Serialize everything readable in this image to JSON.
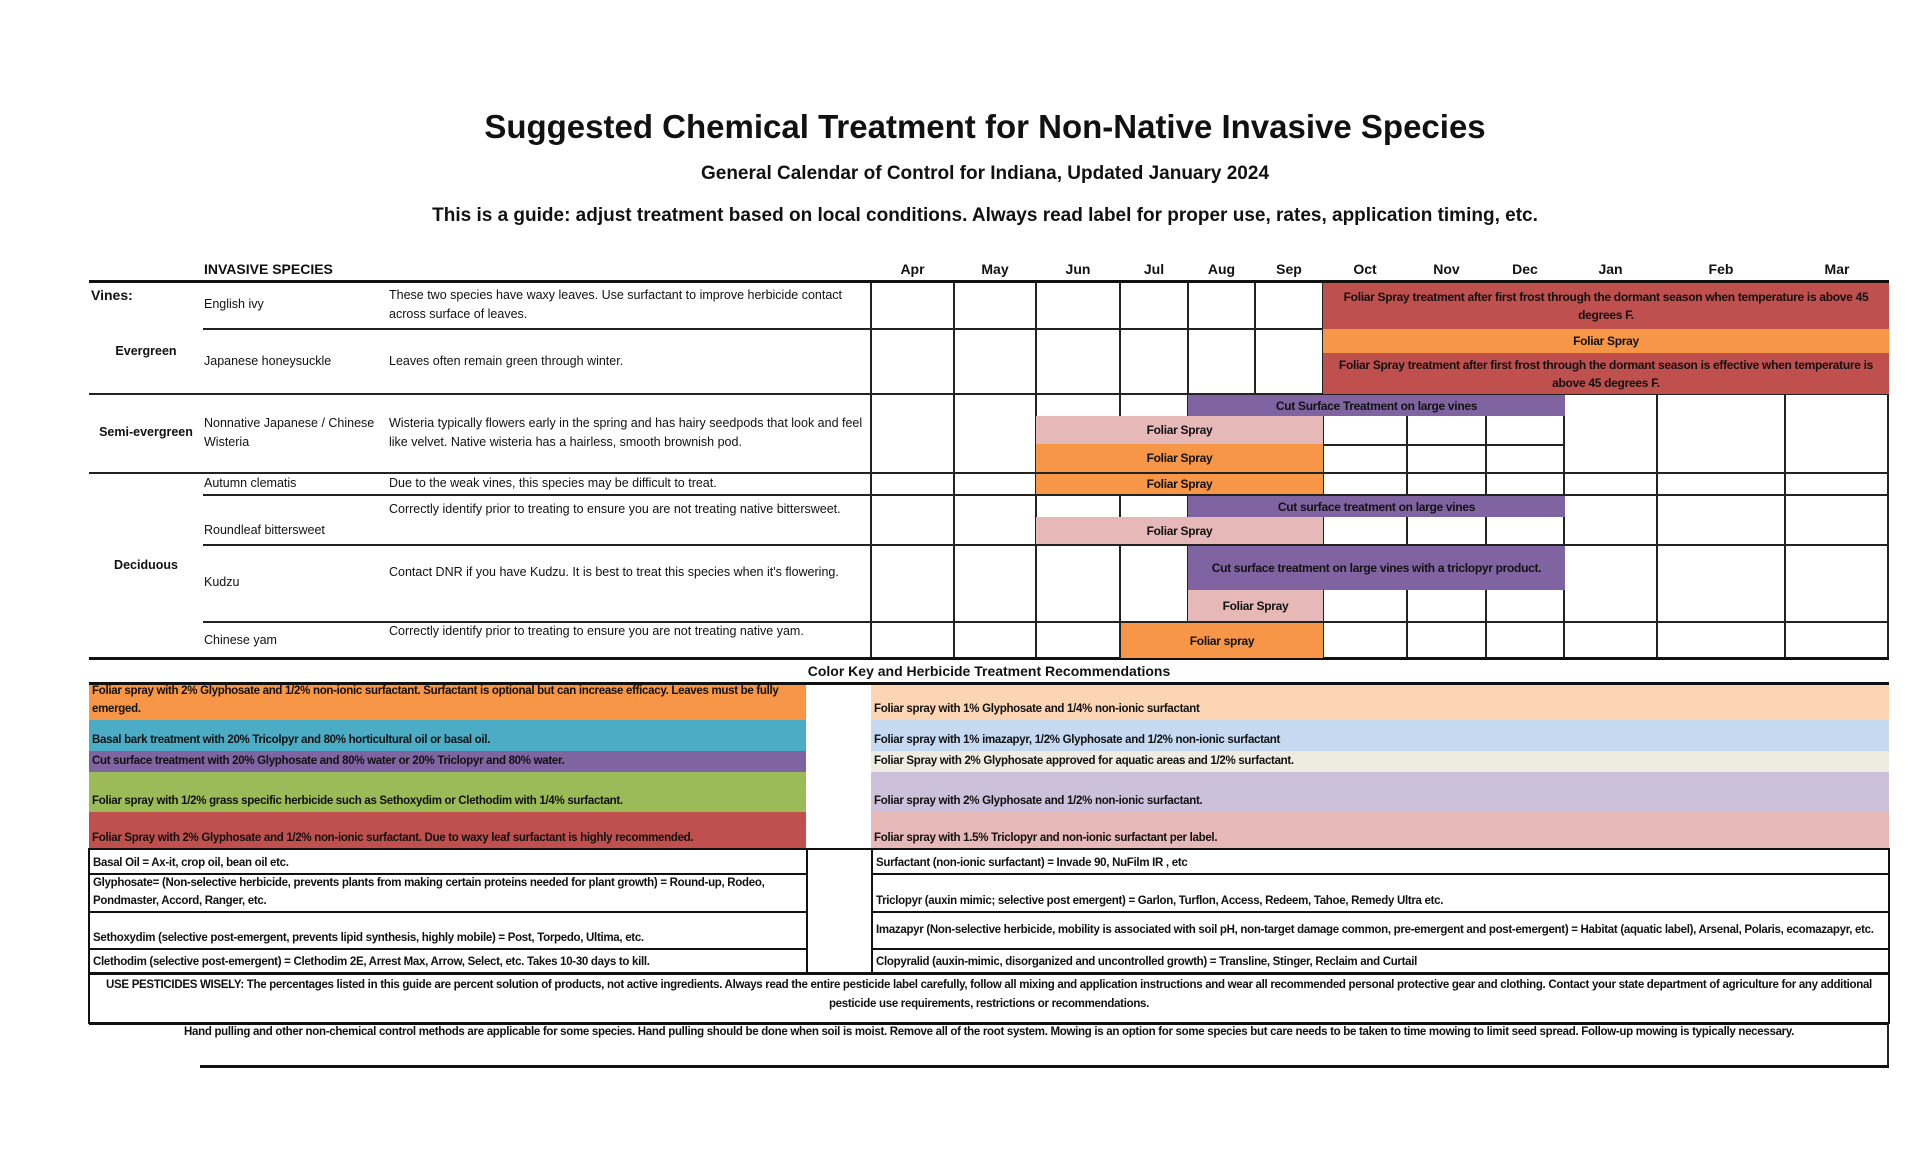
{
  "title": "Suggested Chemical Treatment for Non-Native Invasive Species",
  "subtitle": "General Calendar of Control for Indiana, Updated January 2024",
  "guide": "This is a guide: adjust treatment based on local conditions. Always read label for proper use, rates, application timing, etc.",
  "table": {
    "header": "INVASIVE SPECIES",
    "months": [
      "Apr",
      "May",
      "Jun",
      "Jul",
      "Aug",
      "Sep",
      "Oct",
      "Nov",
      "Dec",
      "Jan",
      "Feb",
      "Mar"
    ],
    "categories": {
      "vines": "Vines:",
      "evergreen": "Evergreen",
      "semi": "Semi-evergreen",
      "deciduous": "Deciduous"
    },
    "species": [
      {
        "name": "English ivy",
        "note": "These two species have waxy leaves. Use surfactant to improve herbicide contact across surface of leaves."
      },
      {
        "name": "Japanese honeysuckle",
        "note": "Leaves often remain green through winter."
      },
      {
        "name": "Nonnative Japanese / Chinese Wisteria",
        "note": "Wisteria typically flowers early in the spring and has hairy seedpods that look and feel like velvet. Native wisteria has a hairless, smooth brownish pod."
      },
      {
        "name": "Autumn clematis",
        "note": "Due to the weak vines, this species may be difficult to treat."
      },
      {
        "name": "Roundleaf bittersweet",
        "note": "Correctly identify prior to treating to ensure you are not treating native bittersweet."
      },
      {
        "name": "Kudzu",
        "note": "Contact DNR if you have Kudzu. It is best to treat this species when it's flowering."
      },
      {
        "name": "Chinese yam",
        "note": "Correctly identify prior to treating to ensure you are not treating native yam."
      }
    ],
    "bars": {
      "ivy_red": "Foliar Spray treatment after first frost through the dormant season when temperature is above 45 degrees F.",
      "honey_orange": "Foliar Spray",
      "honey_red": "Foliar Spray treatment after first frost through the dormant season is effective when temperature is above 45 degrees F.",
      "wis_purple": "Cut Surface Treatment on large vines",
      "wis_pink": "Foliar Spray",
      "wis_orange": "Foliar Spray",
      "clem_orange": "Foliar Spray",
      "bit_purple": "Cut surface treatment on large vines",
      "bit_pink": "Foliar Spray",
      "kud_purple": "Cut surface treatment on large vines with a triclopyr product.",
      "kud_pink": "Foliar Spray",
      "yam_orange": "Foliar spray"
    }
  },
  "key": {
    "title": "Color Key and Herbicide Treatment Recommendations",
    "left": [
      "Foliar spray with 2% Glyphosate and 1/2% non-ionic surfactant. Surfactant is optional but can increase efficacy. Leaves must be fully emerged.",
      "Basal bark treatment with 20% Tricolpyr and 80% horticultural oil or basal oil.",
      "Cut surface treatment with 20% Glyphosate and 80% water or 20% Triclopyr and 80% water.",
      "Foliar spray with 1/2% grass specific herbicide such as Sethoxydim or Clethodim with 1/4% surfactant.",
      "Foliar Spray with 2% Glyphosate and 1/2% non-ionic surfactant. Due to waxy leaf surfactant is highly recommended."
    ],
    "right": [
      "Foliar spray with 1% Glyphosate and 1/4% non-ionic surfactant",
      "Foliar spray with 1% imazapyr,  1/2% Glyphosate and 1/2% non-ionic surfactant",
      "Foliar Spray with 2% Glyphosate approved for aquatic areas and 1/2% surfactant.",
      "Foliar spray with 2% Glyphosate and 1/2% non-ionic surfactant.",
      "Foliar spray with 1.5% Triclopyr and non-ionic surfactant per label."
    ],
    "colors": {
      "orange": "#f79646",
      "blue": "#4bacc6",
      "purple": "#8064a2",
      "green": "#9bbb59",
      "red": "#c0504d",
      "peach": "#fcd5b4",
      "lightblue": "#c5d9f1",
      "cream": "#eeece1",
      "lavender": "#ccc0da",
      "pink": "#e6b8b7"
    }
  },
  "definitions": {
    "left": [
      "Basal Oil = Ax-it, crop oil, bean oil etc.",
      "Glyphosate= (Non-selective herbicide, prevents plants from making certain proteins needed for plant growth) = Round-up, Rodeo, Pondmaster, Accord, Ranger, etc.",
      "Sethoxydim (selective post-emergent, prevents lipid synthesis, highly mobile)  = Post, Torpedo, Ultima, etc.",
      "Clethodim (selective post-emergent) = Clethodim 2E, Arrest Max, Arrow, Select, etc. Takes 10-30 days to kill."
    ],
    "right": [
      "Surfactant (non-ionic surfactant) = Invade 90, NuFilm IR , etc",
      "Triclopyr (auxin mimic; selective post emergent) = Garlon, Turflon, Access, Redeem, Tahoe, Remedy Ultra etc.",
      "Imazapyr  (Non-selective herbicide, mobility is associated with soil pH, non-target damage common, pre-emergent and post-emergent)  = Habitat (aquatic label), Arsenal, Polaris, ecomazapyr, etc.",
      "Clopyralid (auxin-mimic, disorganized and uncontrolled growth) = Transline, Stinger, Reclaim and Curtail"
    ]
  },
  "footer": {
    "warning": "USE PESTICIDES WISELY: The percentages listed in this guide are percent solution of products, not active ingredients. Always read the entire pesticide label carefully, follow all mixing and application instructions and wear all recommended personal protective gear and clothing. Contact your state department of agriculture for any additional pesticide use requirements, restrictions or recommendations.",
    "manual": "Hand pulling and other non-chemical control methods are applicable for some species. Hand pulling should be done when soil is moist. Remove all of the root system.  Mowing is an option for some species but care needs to be taken to time mowing to limit seed spread. Follow-up mowing is typically necessary."
  }
}
